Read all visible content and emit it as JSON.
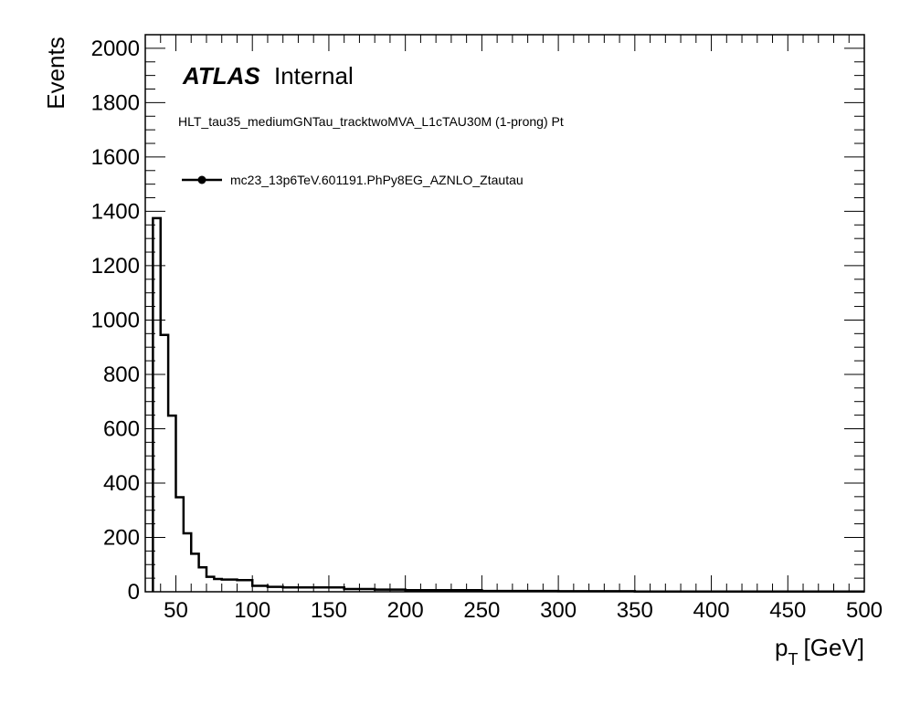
{
  "atlas_label": "ATLAS",
  "status_label": "Internal",
  "chart_data": {
    "type": "histogram",
    "title": "HLT_tau35_mediumGNTau_tracktwoMVA_L1cTAU30M (1-prong) Pt",
    "xlabel_main": "p",
    "xlabel_sub": "T",
    "xlabel_unit": "[GeV]",
    "ylabel": "Events",
    "xlim": [
      30,
      500
    ],
    "ylim": [
      0,
      2050
    ],
    "x_ticks": [
      50,
      100,
      150,
      200,
      250,
      300,
      350,
      400,
      450,
      500
    ],
    "y_ticks": [
      0,
      200,
      400,
      600,
      800,
      1000,
      1200,
      1400,
      1600,
      1800,
      2000
    ],
    "legend": [
      {
        "name": "mc23_13p6TeV.601191.PhPy8EG_AZNLO_Ztautau",
        "marker": "filled-circle"
      }
    ],
    "bin_edges": [
      35,
      40,
      45,
      50,
      55,
      60,
      65,
      70,
      75,
      80,
      90,
      100,
      110,
      120,
      140,
      160,
      180,
      200,
      250,
      300,
      350,
      400,
      450,
      500
    ],
    "values": [
      1375,
      945,
      648,
      348,
      215,
      140,
      90,
      55,
      47,
      45,
      43,
      22,
      18,
      16,
      16,
      10,
      8,
      6,
      3,
      2,
      1,
      1,
      1
    ],
    "grid": false,
    "line_color": "#000000"
  }
}
